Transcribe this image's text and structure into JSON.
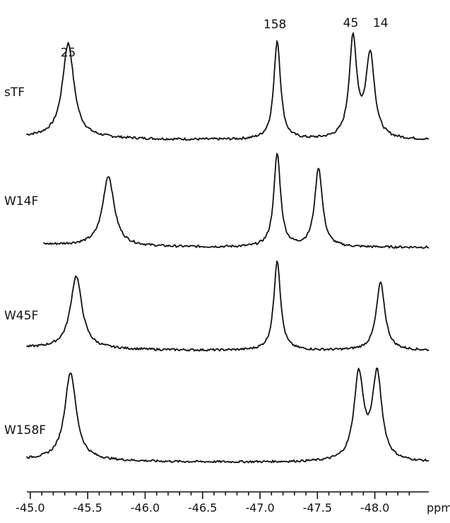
{
  "chart_data": {
    "type": "line",
    "xlabel": "ppm",
    "xlim": [
      -44.97,
      -48.47
    ],
    "x_reversed": true,
    "x_ticks": [
      -45.0,
      -45.5,
      -46.0,
      -46.5,
      -47.0,
      -47.5,
      -48.0
    ],
    "x_tick_labels": [
      "-45.0",
      "-45.5",
      "-46.0",
      "-46.5",
      "-47.0",
      "-47.5",
      "-48.0"
    ],
    "peak_labels": [
      {
        "text": "25",
        "x": -45.33
      },
      {
        "text": "158",
        "x": -47.13
      },
      {
        "text": "45",
        "x": -47.79
      },
      {
        "text": "14",
        "x": -48.05
      }
    ],
    "series": [
      {
        "name": "sTF",
        "baseline": 0.05,
        "peaks": [
          {
            "center": -45.33,
            "height": 0.95,
            "width": 0.06
          },
          {
            "center": -47.15,
            "height": 1.0,
            "width": 0.035
          },
          {
            "center": -47.81,
            "height": 1.0,
            "width": 0.04
          },
          {
            "center": -47.96,
            "height": 0.85,
            "width": 0.045
          }
        ]
      },
      {
        "name": "W14F",
        "baseline": 0.05,
        "peaks": [
          {
            "center": -45.68,
            "height": 0.75,
            "width": 0.06
          },
          {
            "center": -47.15,
            "height": 1.0,
            "width": 0.035
          },
          {
            "center": -47.51,
            "height": 0.85,
            "width": 0.04
          }
        ]
      },
      {
        "name": "W45F",
        "baseline": 0.05,
        "peaks": [
          {
            "center": -45.4,
            "height": 0.8,
            "width": 0.06
          },
          {
            "center": -47.15,
            "height": 1.0,
            "width": 0.035
          },
          {
            "center": -48.05,
            "height": 0.75,
            "width": 0.045
          }
        ]
      },
      {
        "name": "W158F",
        "baseline": 0.05,
        "peaks": [
          {
            "center": -45.35,
            "height": 1.0,
            "width": 0.06
          },
          {
            "center": -47.86,
            "height": 0.98,
            "width": 0.05
          },
          {
            "center": -48.02,
            "height": 0.98,
            "width": 0.05
          }
        ]
      }
    ],
    "grid": false,
    "legend": "none"
  }
}
